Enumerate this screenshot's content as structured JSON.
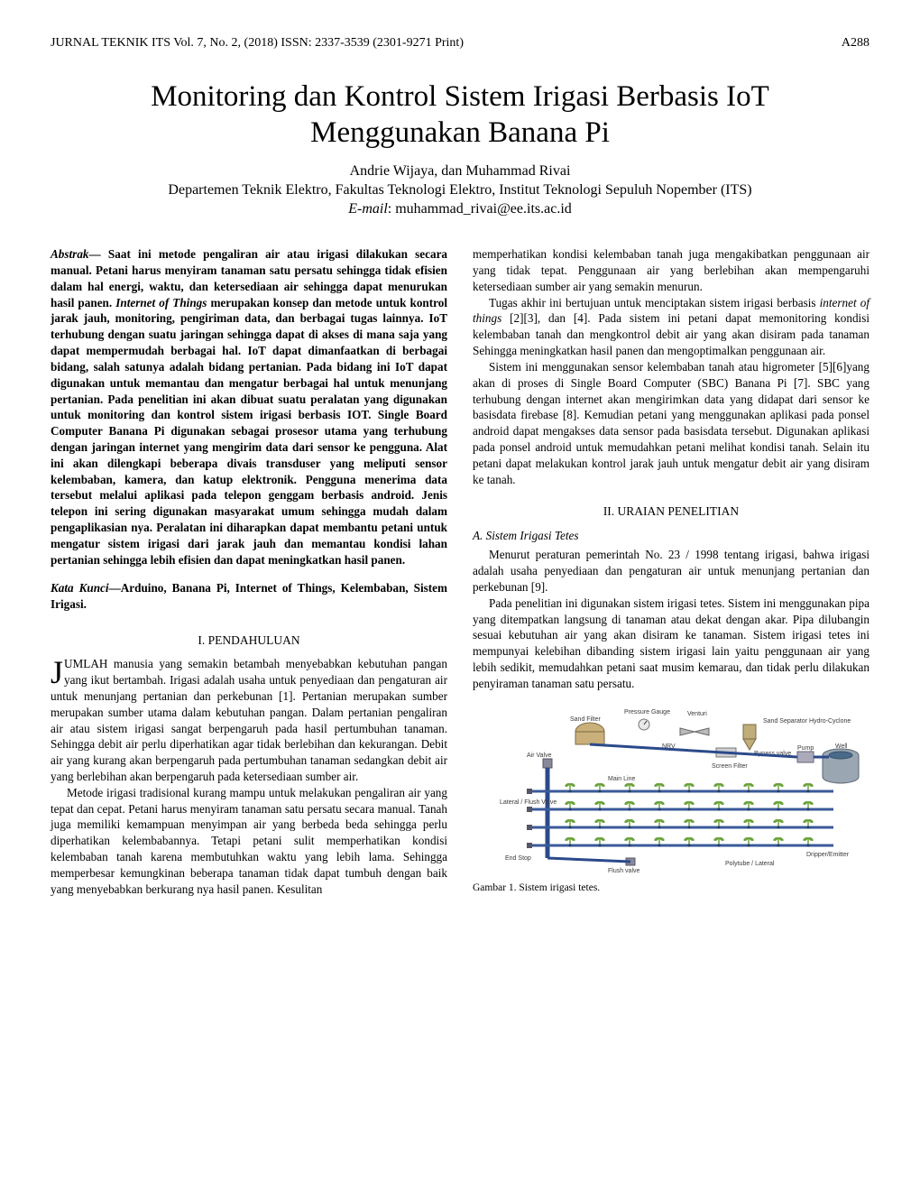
{
  "header": {
    "journal_line": "JURNAL TEKNIK ITS Vol. 7, No. 2, (2018) ISSN: 2337-3539 (2301-9271 Print)",
    "page_no": "A288"
  },
  "title": "Monitoring dan Kontrol Sistem Irigasi Berbasis IoT Menggunakan Banana Pi",
  "authors": "Andrie Wijaya, dan Muhammad Rivai",
  "affiliation": "Departemen Teknik Elektro, Fakultas Teknologi Elektro, Institut Teknologi Sepuluh Nopember (ITS)",
  "email_label": "E-mail",
  "email_value": ": muhammad_rivai@ee.its.ac.id",
  "abstract": {
    "label": "Abstrak",
    "dash": "— ",
    "pre_iot": "Saat ini metode pengaliran air atau irigasi dilakukan secara manual. Petani harus menyiram tanaman satu persatu sehingga tidak efisien dalam hal energi, waktu, dan ketersediaan air sehingga dapat menurukan hasil panen. ",
    "iot_term": "Internet of Things",
    "post_iot": " merupakan konsep dan metode untuk kontrol jarak jauh, monitoring, pengiriman data, dan berbagai tugas lainnya. IoT terhubung dengan suatu jaringan sehingga dapat di akses di mana saja yang dapat mempermudah berbagai hal. IoT dapat dimanfaatkan di berbagai bidang, salah satunya adalah bidang pertanian. Pada bidang ini IoT dapat digunakan untuk memantau dan mengatur berbagai hal untuk menunjang pertanian. Pada penelitian ini akan dibuat suatu peralatan yang digunakan untuk monitoring dan kontrol sistem irigasi berbasis IOT. Single Board Computer Banana Pi digunakan sebagai prosesor utama yang terhubung dengan jaringan internet yang mengirim data dari sensor ke pengguna. Alat ini akan dilengkapi beberapa divais transduser yang meliputi sensor kelembaban, kamera, dan katup elektronik. Pengguna menerima data tersebut melalui aplikasi pada telepon genggam berbasis android. Jenis telepon ini sering digunakan masyarakat umum sehingga mudah dalam pengaplikasian nya. Peralatan ini diharapkan dapat membantu petani untuk mengatur sistem irigasi dari jarak jauh dan memantau kondisi lahan pertanian sehingga lebih efisien dan dapat meningkatkan hasil panen."
  },
  "keywords": {
    "label": "Kata Kunci",
    "dash": "—",
    "text": "Arduino, Banana Pi, Internet of Things, Kelembaban, Sistem Irigasi."
  },
  "sec1": {
    "heading": "I.   PENDAHULUAN",
    "p1_first": "J",
    "p1_rest": "UMLAH manusia yang semakin betambah menyebabkan kebutuhan pangan yang ikut bertambah. Irigasi adalah usaha untuk penyediaan dan pengaturan air untuk menunjang pertanian dan perkebunan [1]. Pertanian merupakan sumber merupakan sumber utama dalam kebutuhan pangan. Dalam pertanian pengaliran air atau sistem irigasi sangat berpengaruh pada hasil pertumbuhan tanaman. Sehingga debit air perlu diperhatikan agar tidak berlebihan dan kekurangan. Debit air yang kurang akan berpengaruh pada pertumbuhan tanaman sedangkan debit air yang berlebihan akan berpengaruh pada ketersediaan sumber air.",
    "p2": "Metode irigasi tradisional kurang mampu untuk melakukan pengaliran air yang tepat dan cepat. Petani harus menyiram tanaman satu persatu secara manual. Tanah juga memiliki kemampuan menyimpan air yang berbeda beda sehingga perlu diperhatikan kelembabannya. Tetapi petani sulit memperhatikan kondisi kelembaban tanah karena membutuhkan waktu yang lebih lama. Sehingga memperbesar kemungkinan beberapa tanaman tidak dapat tumbuh dengan baik yang menyebabkan berkurang nya hasil panen. Kesulitan"
  },
  "col2": {
    "p1": "memperhatikan kondisi kelembaban tanah juga mengakibatkan penggunaan air yang tidak tepat. Penggunaan air yang berlebihan akan mempengaruhi ketersediaan sumber air yang semakin menurun.",
    "p2_pre": "Tugas akhir ini bertujuan untuk menciptakan sistem irigasi berbasis ",
    "p2_ital": "internet of things",
    "p2_post": " [2][3], dan [4]. Pada sistem ini petani dapat memonitoring kondisi kelembaban tanah dan mengkontrol debit air yang akan disiram pada tanaman Sehingga meningkatkan hasil panen dan mengoptimalkan penggunaan air.",
    "p3": "Sistem ini menggunakan sensor kelembaban tanah atau higrometer [5][6]yang akan di proses di Single Board Computer (SBC) Banana Pi [7]. SBC yang terhubung dengan internet akan mengirimkan data yang didapat dari sensor ke basisdata firebase [8]. Kemudian petani yang menggunakan aplikasi pada ponsel android dapat mengakses data sensor pada basisdata tersebut. Digunakan aplikasi pada ponsel android untuk memudahkan petani melihat kondisi tanah. Selain itu petani dapat melakukan kontrol jarak jauh untuk mengatur debit air yang disiram ke tanah."
  },
  "sec2": {
    "heading": "II.   URAIAN PENELITIAN",
    "subA_label": "A.  Sistem Irigasi Tetes",
    "pA1": "Menurut peraturan pemerintah No. 23 / 1998 tentang irigasi, bahwa irigasi adalah usaha penyediaan dan pengaturan air untuk menunjang pertanian dan perkebunan [9].",
    "pA2": "Pada penelitian ini digunakan sistem irigasi tetes. Sistem ini menggunakan pipa yang ditempatkan langsung di tanaman atau dekat dengan akar. Pipa dilubangin sesuai kebutuhan air yang akan disiram ke tanaman. Sistem irigasi tetes ini mempunyai kelebihan dibanding sistem irigasi lain yaitu penggunaan air yang lebih sedikit, memudahkan petani saat musim kemarau, dan tidak perlu dilakukan penyiraman tanaman satu persatu."
  },
  "figure1": {
    "caption": "Gambar 1. Sistem irigasi tetes.",
    "labels": {
      "sand_filter": "Sand Filter",
      "pressure_gauge": "Pressure Gauge",
      "venturi": "Venturi",
      "sand_separator": "Sand Separator Hydro-Cyclone",
      "nrv": "NRV",
      "bypass": "Bypass valve",
      "screen_filter": "Screen Filter",
      "pump": "Pump",
      "well": "Well",
      "air_valve": "Air Valve",
      "main_line": "Main Line",
      "lateral": "Lateral / Flush Valve",
      "end_stop": "End Stop",
      "flush_valve": "Flush valve",
      "polytube": "Polytube / Lateral",
      "dripper": "Dripper/Emitter"
    },
    "style": {
      "pipe_color": "#3a5a9a",
      "plant_color": "#6aa23a",
      "header_pipe_color": "#2b4a8a",
      "well_fill": "#9aa7b3",
      "well_stroke": "#5a6570",
      "label_color": "#3a3a3a",
      "label_fontsize": 7,
      "background": "#ffffff"
    }
  }
}
